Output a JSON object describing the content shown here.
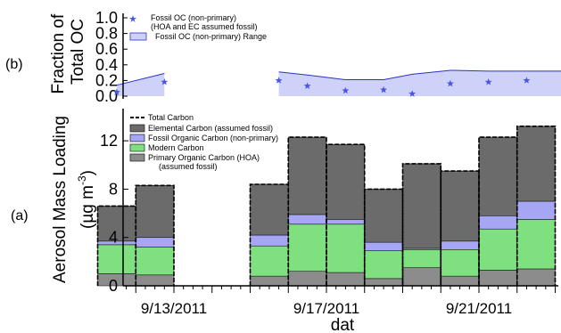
{
  "chart_data": [
    {
      "panel": "(b)",
      "type": "scatter",
      "ylabel": "Fraction of Total OC",
      "ylim": [
        0,
        1
      ],
      "yticks": [
        "0.0",
        "0.2",
        "0.4",
        "0.6",
        "0.8",
        "1.0"
      ],
      "legend": [
        "Fossil OC (non-primary)",
        "(HOA and EC assumed fossil)",
        "Fossil OC (non-primary) Range"
      ],
      "series": [
        {
          "name": "Fossil OC (non-primary)",
          "marker": "star",
          "x": [
            "2011-09-11 12:00",
            "2011-09-12 18:00",
            "2011-09-15 18:00",
            "2011-09-16 12:00",
            "2011-09-17 12:00",
            "2011-09-18 12:00",
            "2011-09-19 06:00",
            "2011-09-20 06:00",
            "2011-09-21 06:00",
            "2011-09-22 06:00"
          ],
          "values": [
            0.05,
            0.18,
            0.2,
            0.13,
            0.07,
            0.08,
            0.03,
            0.16,
            0.18,
            0.2
          ]
        },
        {
          "name": "Fossil OC (non-primary) Range",
          "type": "area",
          "segments": [
            {
              "x": [
                "2011-09-11 12:00",
                "2011-09-12 18:00"
              ],
              "upper": [
                0.14,
                0.29
              ]
            },
            {
              "x": [
                "2011-09-15 18:00",
                "2011-09-16 12:00",
                "2011-09-17 12:00",
                "2011-09-18 12:00",
                "2011-09-19 06:00",
                "2011-09-20 06:00",
                "2011-09-21 06:00",
                "2011-09-22 06:00",
                "2011-09-23 06:00"
              ],
              "upper": [
                0.31,
                0.27,
                0.21,
                0.21,
                0.28,
                0.33,
                0.32,
                0.32,
                0.32
              ]
            }
          ]
        }
      ]
    },
    {
      "panel": "(a)",
      "type": "bar",
      "stacked": true,
      "xlabel": "dat",
      "ylabel": "Aerosol Mass Loading",
      "ylabel_unit": "(µg m",
      "ylabel_exp": "-3",
      "ylabel_close": ")",
      "ylim": [
        0,
        14
      ],
      "yticks": [
        "0",
        "4",
        "8",
        "12"
      ],
      "x_tick_labels": [
        "9/13/2011",
        "9/17/2011",
        "9/21/2011"
      ],
      "legend": [
        "Total Carbon",
        "Elemental Carbon (assumed fossil)",
        "Fossil Organic Carbon (non-primary)",
        "Modern Carbon",
        "Primary Organic Carbon (HOA)",
        "(assumed fossil)"
      ],
      "colors": {
        "total": "#000000",
        "elemental": "#6b6b6b",
        "fossil_oc": "#a6a6f5",
        "modern": "#7fe07f",
        "primary": "#8c8c8c"
      },
      "categories": [
        "9/11/2011",
        "9/12/2011",
        "9/15/2011",
        "9/16/2011",
        "9/17/2011",
        "9/18/2011",
        "9/19/2011",
        "9/20/2011",
        "9/21/2011",
        "9/22/2011"
      ],
      "series": [
        {
          "name": "Primary Organic Carbon (HOA)",
          "values": [
            1.0,
            0.9,
            0.8,
            1.2,
            1.1,
            0.6,
            1.5,
            0.8,
            1.3,
            1.4
          ]
        },
        {
          "name": "Modern Carbon",
          "values": [
            2.4,
            2.3,
            2.5,
            3.9,
            4.0,
            2.3,
            1.5,
            2.2,
            3.4,
            4.1
          ]
        },
        {
          "name": "Fossil Organic Carbon (non-primary)",
          "values": [
            0.3,
            0.8,
            0.9,
            0.8,
            0.4,
            0.7,
            0.1,
            0.7,
            1.1,
            1.5
          ]
        },
        {
          "name": "Elemental Carbon (assumed fossil)",
          "values": [
            2.9,
            4.3,
            4.2,
            6.4,
            6.2,
            4.4,
            7.0,
            5.8,
            6.5,
            6.2
          ]
        }
      ],
      "total": [
        6.6,
        8.3,
        8.4,
        12.3,
        11.7,
        8.0,
        10.1,
        9.5,
        12.3,
        13.2
      ]
    }
  ]
}
